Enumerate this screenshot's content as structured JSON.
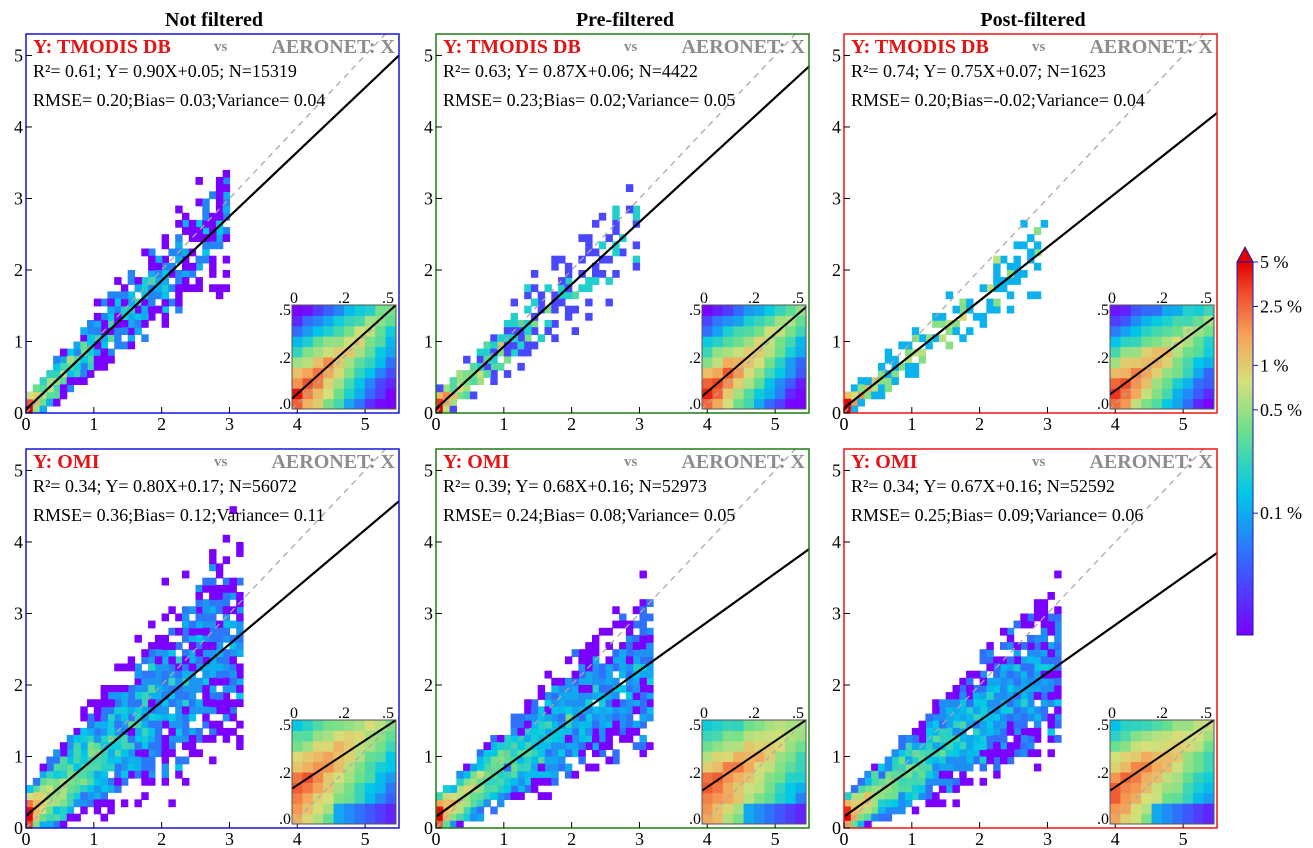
{
  "colors": {
    "not_filtered": "#1515d8",
    "pre_filtered": "#1e7a14",
    "post_filtered": "#ee1616",
    "y_label": "#e51414",
    "x_label": "#8c8c8c",
    "regression_line": "#000000",
    "one_to_one_line": "#aaaaaa"
  },
  "colorbar": {
    "type": "colorbar",
    "scale": "log",
    "colormap": "rainbow",
    "tick_labels": [
      "5 %",
      "2.5 %",
      "1 %",
      "0.5 %",
      "0.1 %"
    ],
    "tick_values": [
      5,
      2.5,
      1,
      0.5,
      0.1
    ],
    "extend": "max"
  },
  "chart_data": [
    {
      "type": "heatmap",
      "column": "Not filtered",
      "row": "TMODIS DB",
      "column_title": "Not filtered",
      "y_title": "Y: TMODIS DB",
      "vs": "vs",
      "x_title": "AERONET: X",
      "stats_line1": "R²= 0.61; Y= 0.90X+0.05; N=15319",
      "stats_line2": "RMSE= 0.20;Bias= 0.03;Variance= 0.04",
      "slope": 0.9,
      "intercept": 0.05,
      "n": 15319,
      "r2": 0.61,
      "rmse": 0.2,
      "bias": 0.03,
      "variance": 0.04,
      "xlim": [
        0,
        5.5
      ],
      "ylim": [
        0,
        5.3
      ],
      "x_ticks": [
        "0",
        "1",
        "2",
        "3",
        "4",
        "5"
      ],
      "y_ticks": [
        "0",
        "1",
        "2",
        "3",
        "4",
        "5"
      ],
      "inset": {
        "xlim": [
          0,
          0.5
        ],
        "ylim": [
          0,
          0.5
        ],
        "x_ticks": [
          "0",
          ".2",
          ".5"
        ],
        "y_ticks": [
          ".0",
          ".2",
          ".5"
        ],
        "line_start": 0.05,
        "line_end": 0.5
      }
    },
    {
      "type": "heatmap",
      "column": "Pre-filtered",
      "row": "TMODIS DB",
      "column_title": "Pre-filtered",
      "y_title": "Y: TMODIS DB",
      "vs": "vs",
      "x_title": "AERONET: X",
      "stats_line1": "R²= 0.63; Y= 0.87X+0.06; N=4422",
      "stats_line2": "RMSE= 0.23;Bias= 0.02;Variance= 0.05",
      "slope": 0.87,
      "intercept": 0.06,
      "n": 4422,
      "r2": 0.63,
      "rmse": 0.23,
      "bias": 0.02,
      "variance": 0.05,
      "xlim": [
        0,
        5.5
      ],
      "ylim": [
        0,
        5.3
      ],
      "x_ticks": [
        "0",
        "1",
        "2",
        "3",
        "4",
        "5"
      ],
      "y_ticks": [
        "0",
        "1",
        "2",
        "3",
        "4",
        "5"
      ],
      "inset": {
        "xlim": [
          0,
          0.5
        ],
        "ylim": [
          0,
          0.5
        ],
        "x_ticks": [
          "0",
          ".2",
          ".5"
        ],
        "y_ticks": [
          ".0",
          ".2",
          ".5"
        ],
        "line_start": 0.06,
        "line_end": 0.49
      }
    },
    {
      "type": "heatmap",
      "column": "Post-filtered",
      "row": "TMODIS DB",
      "column_title": "Post-filtered",
      "y_title": "Y: TMODIS DB",
      "vs": "vs",
      "x_title": "AERONET: X",
      "stats_line1": "R²= 0.74; Y= 0.75X+0.07; N=1623",
      "stats_line2": "RMSE= 0.20;Bias=-0.02;Variance= 0.04",
      "slope": 0.75,
      "intercept": 0.07,
      "n": 1623,
      "r2": 0.74,
      "rmse": 0.2,
      "bias": -0.02,
      "variance": 0.04,
      "xlim": [
        0,
        5.5
      ],
      "ylim": [
        0,
        5.3
      ],
      "x_ticks": [
        "0",
        "1",
        "2",
        "3",
        "4",
        "5"
      ],
      "y_ticks": [
        "0",
        "1",
        "2",
        "3",
        "4",
        "5"
      ],
      "inset": {
        "xlim": [
          0,
          0.5
        ],
        "ylim": [
          0,
          0.5
        ],
        "x_ticks": [
          "0",
          ".2",
          ".5"
        ],
        "y_ticks": [
          ".0",
          ".2",
          ".5"
        ],
        "line_start": 0.07,
        "line_end": 0.44
      }
    },
    {
      "type": "heatmap",
      "column": "Not filtered",
      "row": "OMI",
      "column_title": "Not filtered",
      "y_title": "Y: OMI",
      "vs": "vs",
      "x_title": "AERONET: X",
      "stats_line1": "R²= 0.34; Y= 0.80X+0.17; N=56072",
      "stats_line2": "RMSE= 0.36;Bias= 0.12;Variance= 0.11",
      "slope": 0.8,
      "intercept": 0.17,
      "n": 56072,
      "r2": 0.34,
      "rmse": 0.36,
      "bias": 0.12,
      "variance": 0.11,
      "xlim": [
        0,
        5.5
      ],
      "ylim": [
        0,
        5.3
      ],
      "x_ticks": [
        "0",
        "1",
        "2",
        "3",
        "4",
        "5"
      ],
      "y_ticks": [
        "0",
        "1",
        "2",
        "3",
        "4",
        "5"
      ],
      "inset": {
        "xlim": [
          0,
          0.5
        ],
        "ylim": [
          0,
          0.5
        ],
        "x_ticks": [
          "0",
          ".2",
          ".5"
        ],
        "y_ticks": [
          ".0",
          ".2",
          ".5"
        ],
        "line_start": 0.17,
        "line_end": 0.5
      }
    },
    {
      "type": "heatmap",
      "column": "Pre-filtered",
      "row": "OMI",
      "column_title": "Pre-filtered",
      "y_title": "Y: OMI",
      "vs": "vs",
      "x_title": "AERONET: X",
      "stats_line1": "R²= 0.39; Y= 0.68X+0.16; N=52973",
      "stats_line2": "RMSE= 0.24;Bias= 0.08;Variance= 0.05",
      "slope": 0.68,
      "intercept": 0.16,
      "n": 52973,
      "r2": 0.39,
      "rmse": 0.24,
      "bias": 0.08,
      "variance": 0.05,
      "xlim": [
        0,
        5.5
      ],
      "ylim": [
        0,
        5.3
      ],
      "x_ticks": [
        "0",
        "1",
        "2",
        "3",
        "4",
        "5"
      ],
      "y_ticks": [
        "0",
        "1",
        "2",
        "3",
        "4",
        "5"
      ],
      "inset": {
        "xlim": [
          0,
          0.5
        ],
        "ylim": [
          0,
          0.5
        ],
        "x_ticks": [
          "0",
          ".2",
          ".5"
        ],
        "y_ticks": [
          ".0",
          ".2",
          ".5"
        ],
        "line_start": 0.16,
        "line_end": 0.5
      }
    },
    {
      "type": "heatmap",
      "column": "Post-filtered",
      "row": "OMI",
      "column_title": "Post-filtered",
      "y_title": "Y: OMI",
      "vs": "vs",
      "x_title": "AERONET: X",
      "stats_line1": "R²= 0.34; Y= 0.67X+0.16; N=52592",
      "stats_line2": "RMSE= 0.25;Bias= 0.09;Variance= 0.06",
      "slope": 0.67,
      "intercept": 0.16,
      "n": 52592,
      "r2": 0.34,
      "rmse": 0.25,
      "bias": 0.09,
      "variance": 0.06,
      "xlim": [
        0,
        5.5
      ],
      "ylim": [
        0,
        5.3
      ],
      "x_ticks": [
        "0",
        "1",
        "2",
        "3",
        "4",
        "5"
      ],
      "y_ticks": [
        "0",
        "1",
        "2",
        "3",
        "4",
        "5"
      ],
      "inset": {
        "xlim": [
          0,
          0.5
        ],
        "ylim": [
          0,
          0.5
        ],
        "x_ticks": [
          "0",
          ".2",
          ".5"
        ],
        "y_ticks": [
          ".0",
          ".2",
          ".5"
        ],
        "line_start": 0.16,
        "line_end": 0.5
      }
    }
  ]
}
